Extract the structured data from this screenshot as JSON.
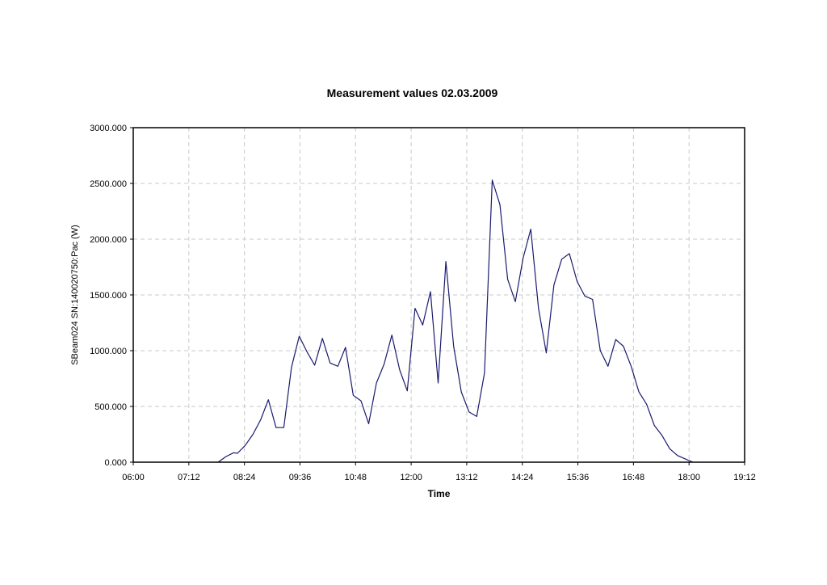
{
  "chart_data": {
    "type": "line",
    "title": "Measurement values 02.03.2009",
    "xlabel": "Time",
    "ylabel": "SBeam024 SN:140020750:Pac (W)",
    "x_ticks": [
      "06:00",
      "07:12",
      "08:24",
      "09:36",
      "10:48",
      "12:00",
      "13:12",
      "14:24",
      "15:36",
      "16:48",
      "18:00",
      "19:12"
    ],
    "y_ticks": [
      "0.000",
      "500.000",
      "1000.000",
      "1500.000",
      "2000.000",
      "2500.000",
      "3000.000"
    ],
    "xlim": [
      "06:00",
      "19:12"
    ],
    "ylim": [
      0,
      3000
    ],
    "grid": true,
    "line_color": "#1a1a6e",
    "series": [
      {
        "x": [
          "07:50",
          "08:00",
          "08:10",
          "08:15",
          "08:25",
          "08:35",
          "08:45",
          "08:55",
          "09:05",
          "09:15",
          "09:25",
          "09:35",
          "09:45",
          "09:55",
          "10:05",
          "10:15",
          "10:25",
          "10:35",
          "10:45",
          "10:55",
          "11:05",
          "11:15",
          "11:25",
          "11:35",
          "11:45",
          "11:55",
          "12:05",
          "12:15",
          "12:25",
          "12:35",
          "12:45",
          "12:55",
          "13:05",
          "13:15",
          "13:25",
          "13:35",
          "13:45",
          "13:55",
          "14:05",
          "14:15",
          "14:25",
          "14:35",
          "14:45",
          "14:55",
          "15:05",
          "15:15",
          "15:25",
          "15:35",
          "15:45",
          "15:55",
          "16:05",
          "16:15",
          "16:25",
          "16:35",
          "16:45",
          "16:55",
          "17:05",
          "17:15",
          "17:25",
          "17:35",
          "17:45",
          "17:55",
          "18:05"
        ],
        "y": [
          0,
          50,
          85,
          80,
          150,
          250,
          380,
          560,
          310,
          310,
          850,
          1130,
          990,
          870,
          1110,
          890,
          860,
          1030,
          600,
          550,
          345,
          710,
          880,
          1140,
          830,
          640,
          1380,
          1230,
          1530,
          710,
          1800,
          1040,
          630,
          450,
          410,
          800,
          2530,
          2310,
          1640,
          1440,
          1830,
          2090,
          1380,
          980,
          1590,
          1820,
          1870,
          1620,
          1490,
          1460,
          1000,
          860,
          1100,
          1040,
          860,
          630,
          520,
          330,
          240,
          120,
          60,
          30,
          0
        ]
      }
    ]
  }
}
